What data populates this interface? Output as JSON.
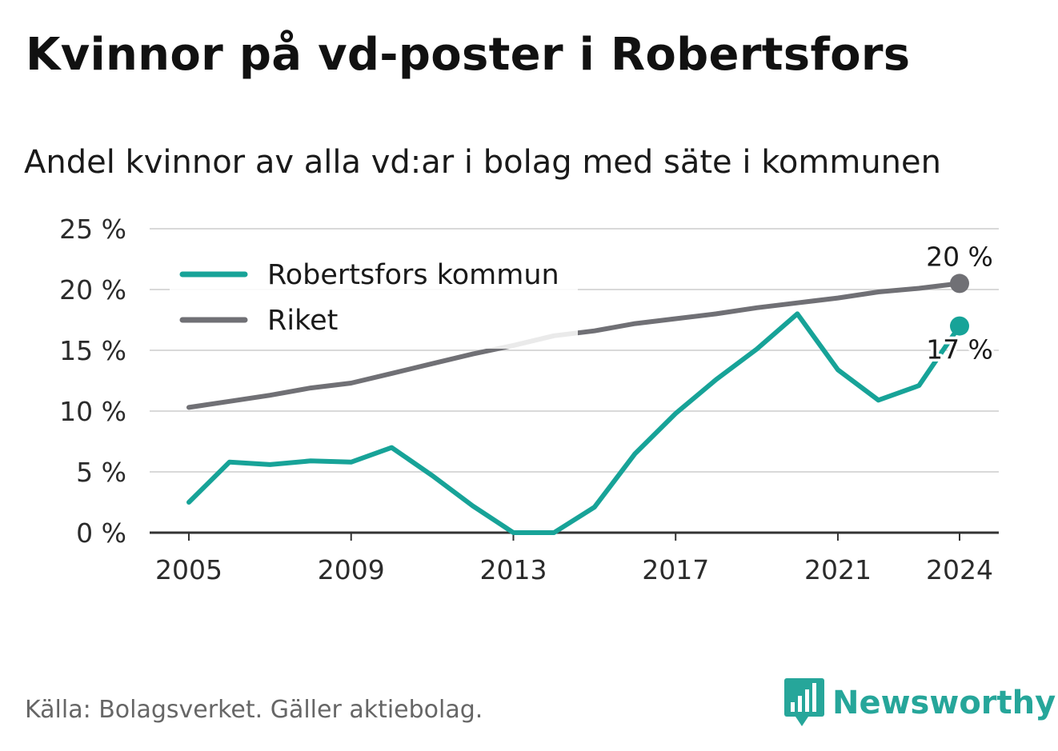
{
  "header": {
    "title": "Kvinnor på vd-poster i Robertsfors",
    "subtitle": "Andel kvinnor av alla vd:ar i bolag med säte i kommunen"
  },
  "footer": {
    "source": "Källa: Bolagsverket. Gäller aktiebolag.",
    "brand": "Newsworthy"
  },
  "colors": {
    "robertsfors": "#17a398",
    "riket": "#707075",
    "grid": "#d9d9d9",
    "axis": "#333333",
    "brand": "#26a69a"
  },
  "icons": {
    "logo": "bar-chart-speech-bubble-icon"
  },
  "chart_data": {
    "type": "line",
    "x": [
      2005,
      2006,
      2007,
      2008,
      2009,
      2010,
      2011,
      2012,
      2013,
      2014,
      2015,
      2016,
      2017,
      2018,
      2019,
      2020,
      2021,
      2022,
      2023,
      2024
    ],
    "x_ticks": [
      2005,
      2009,
      2013,
      2017,
      2021,
      2024
    ],
    "y_ticks": [
      0,
      5,
      10,
      15,
      20,
      25
    ],
    "y_tick_labels": [
      "0 %",
      "5 %",
      "10 %",
      "15 %",
      "20 %",
      "25 %"
    ],
    "ylim": [
      0,
      25
    ],
    "grid": true,
    "legend_position": "top-left",
    "series": [
      {
        "name": "Robertsfors kommun",
        "color": "#17a398",
        "values": [
          2.5,
          5.8,
          5.6,
          5.9,
          5.8,
          7.0,
          4.7,
          2.2,
          0.0,
          0.0,
          2.1,
          6.5,
          9.8,
          12.6,
          15.1,
          18.0,
          13.4,
          10.9,
          12.1,
          17.0
        ],
        "end_label": "17 %"
      },
      {
        "name": "Riket",
        "color": "#707075",
        "values": [
          10.3,
          10.8,
          11.3,
          11.9,
          12.3,
          13.1,
          13.9,
          14.7,
          15.4,
          16.2,
          16.6,
          17.2,
          17.6,
          18.0,
          18.5,
          18.9,
          19.3,
          19.8,
          20.1,
          20.5
        ],
        "end_label": "20 %"
      }
    ]
  }
}
